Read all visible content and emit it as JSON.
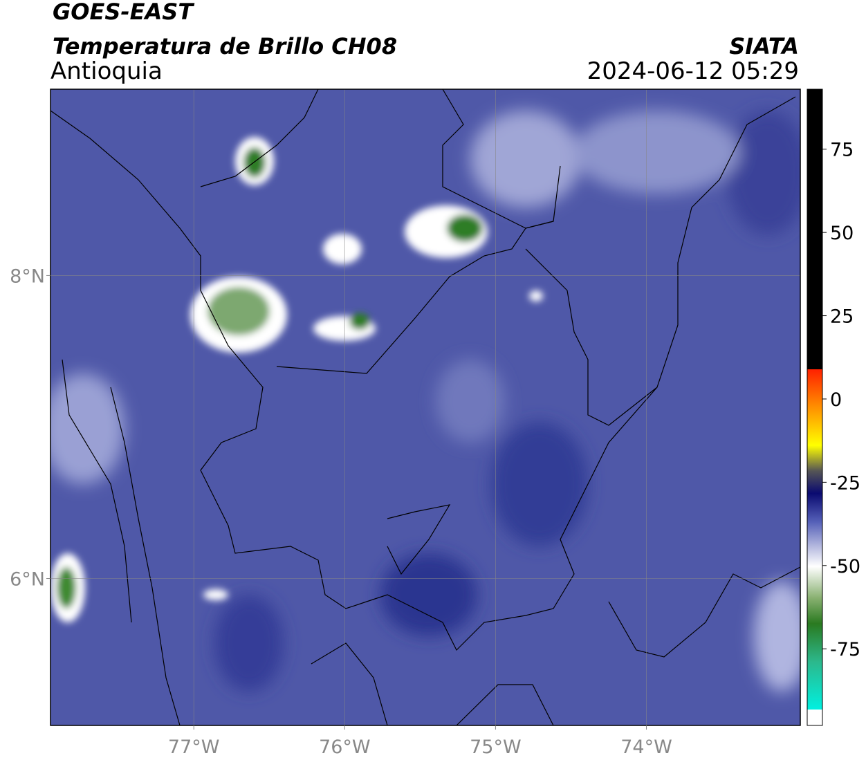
{
  "header": {
    "title": "GOES-EAST",
    "subtitle": "Temperatura de Brillo CH08",
    "region": "Antioquia",
    "source": "SIATA",
    "datetime": "2024-06-12 05:29"
  },
  "map": {
    "xlim": [
      -77.95,
      -72.98
    ],
    "ylim": [
      5.03,
      9.23
    ],
    "xticks": [
      {
        "value": -77,
        "label": "77°W"
      },
      {
        "value": -76,
        "label": "76°W"
      },
      {
        "value": -75,
        "label": "75°W"
      },
      {
        "value": -74,
        "label": "74°W"
      }
    ],
    "yticks": [
      {
        "value": 6,
        "label": "6°N"
      },
      {
        "value": 8,
        "label": "8°N"
      }
    ],
    "grid": true
  },
  "colorbar": {
    "lim": [
      -98,
      93
    ],
    "ticks": [
      -75,
      -50,
      -25,
      0,
      25,
      50,
      75
    ]
  }
}
